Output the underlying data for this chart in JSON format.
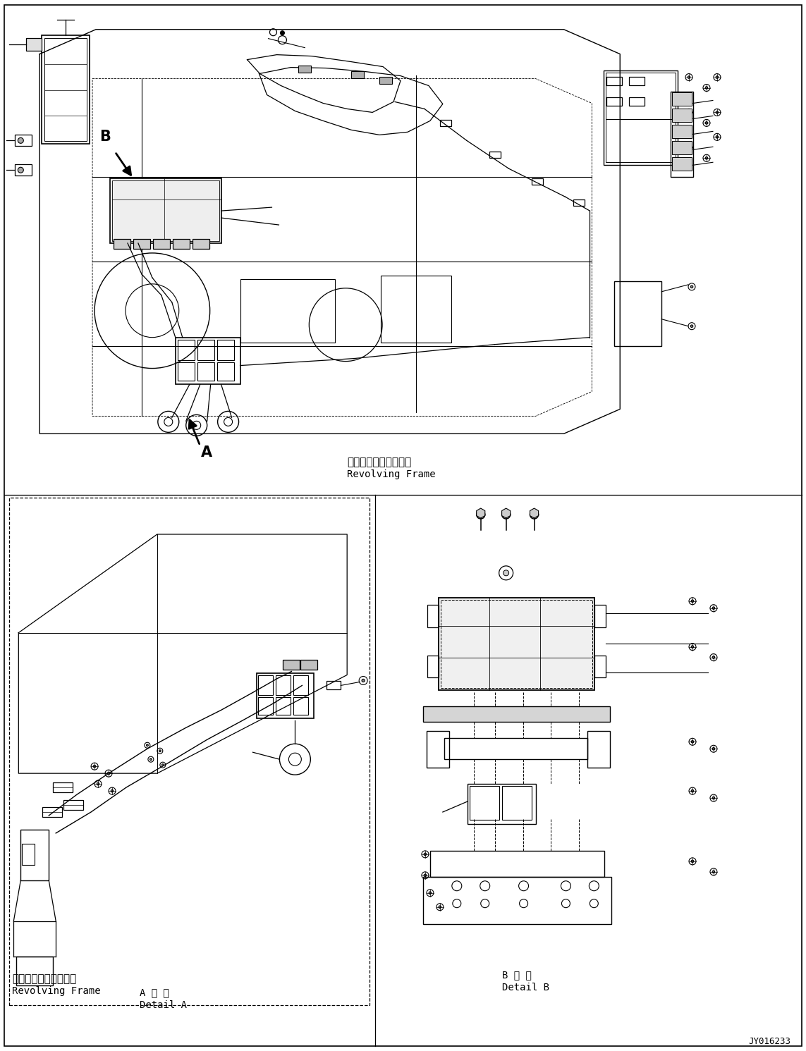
{
  "background_color": "#ffffff",
  "line_color": "#000000",
  "fig_width": 11.43,
  "fig_height": 14.91,
  "dpi": 100,
  "title_code": "JY016233",
  "labels": {
    "revolving_frame_jp": "レボルビングフレーム",
    "revolving_frame_en": "Revolving Frame",
    "revolving_frame_jp2": "レボルビングフレーム",
    "revolving_frame_en2": "Revolving Frame",
    "detail_a_jp": "A 詳 細",
    "detail_a_en": "Detail A",
    "detail_b_jp": "B 詳 細",
    "detail_b_en": "Detail B",
    "label_a": "A",
    "label_b": "B"
  }
}
